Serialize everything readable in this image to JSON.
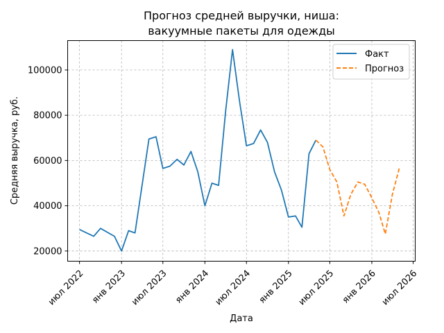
{
  "chart_data": {
    "type": "line",
    "title_lines": [
      "Прогноз средней выручки, ниша:",
      "вакуумные пакеты для одежды"
    ],
    "xlabel": "Дата",
    "ylabel": "Средняя выручка, руб.",
    "x_ticks": [
      "2022-07-01",
      "2023-01-01",
      "2023-07-01",
      "2024-01-01",
      "2024-07-01",
      "2025-01-01",
      "2025-07-01",
      "2026-01-01",
      "2026-07-01"
    ],
    "x_tick_labels": [
      "июл 2022",
      "янв 2023",
      "июл 2023",
      "янв 2024",
      "июл 2024",
      "янв 2025",
      "июл 2025",
      "янв 2026",
      "июл 2026"
    ],
    "xlim": [
      "2022-05-10",
      "2026-07-10"
    ],
    "y_ticks": [
      20000,
      40000,
      60000,
      80000,
      100000
    ],
    "y_tick_labels": [
      "20000",
      "40000",
      "60000",
      "80000",
      "100000"
    ],
    "ylim": [
      15500,
      113000
    ],
    "grid": true,
    "legend_position": "top-right",
    "series": [
      {
        "name": "Факт",
        "style": "solid",
        "color": "#1f77b4",
        "x": [
          "2022-07-01",
          "2022-09-01",
          "2022-10-01",
          "2022-12-01",
          "2023-01-01",
          "2023-02-01",
          "2023-03-01",
          "2023-05-01",
          "2023-06-01",
          "2023-07-01",
          "2023-08-01",
          "2023-09-01",
          "2023-10-01",
          "2023-11-01",
          "2023-12-01",
          "2024-01-01",
          "2024-02-01",
          "2024-03-01",
          "2024-04-01",
          "2024-05-01",
          "2024-06-01",
          "2024-07-01",
          "2024-08-01",
          "2024-09-01",
          "2024-10-01",
          "2024-11-01",
          "2024-12-01",
          "2025-01-01",
          "2025-02-01",
          "2025-03-01",
          "2025-04-01",
          "2025-05-01"
        ],
        "y": [
          29500,
          26500,
          30000,
          26500,
          20000,
          29000,
          28000,
          69500,
          70500,
          56500,
          57500,
          60500,
          58000,
          64000,
          55000,
          40000,
          50000,
          49000,
          82000,
          109000,
          86000,
          66500,
          67500,
          73500,
          68000,
          55000,
          47000,
          35000,
          35500,
          30500,
          63000,
          69000
        ]
      },
      {
        "name": "Прогноз",
        "style": "dashed",
        "color": "#ff7f0e",
        "x": [
          "2025-05-01",
          "2025-06-01",
          "2025-07-01",
          "2025-08-01",
          "2025-09-01",
          "2025-10-01",
          "2025-11-01",
          "2025-12-01",
          "2026-01-01",
          "2026-02-01",
          "2026-03-01",
          "2026-04-01",
          "2026-05-01"
        ],
        "y": [
          69000,
          66000,
          56000,
          50500,
          35500,
          45000,
          50500,
          49500,
          43500,
          37000,
          27500,
          45000,
          56500
        ]
      }
    ]
  }
}
